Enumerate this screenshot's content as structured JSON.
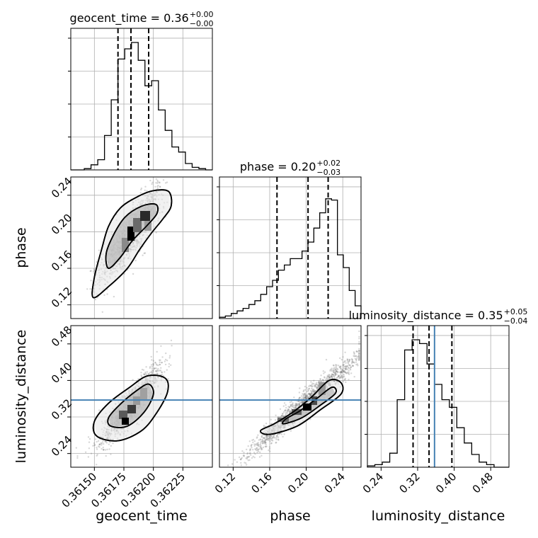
{
  "chart_data": {
    "type": "corner",
    "parameters": [
      "geocent_time",
      "phase",
      "luminosity_distance"
    ],
    "xlabels": [
      "geocent_time",
      "phase",
      "luminosity_distance"
    ],
    "ylabels": [
      "phase",
      "luminosity_distance"
    ],
    "ranges": {
      "geocent_time": [
        0.3613,
        0.3625
      ],
      "phase": [
        0.105,
        0.26
      ],
      "luminosity_distance": [
        0.21,
        0.52
      ]
    },
    "ticks": {
      "geocent_time": [
        "0.36150",
        "0.36175",
        "0.36200",
        "0.36225"
      ],
      "phase": [
        "0.12",
        "0.16",
        "0.20",
        "0.24"
      ],
      "luminosity_distance": [
        "0.24",
        "0.32",
        "0.40",
        "0.48"
      ]
    },
    "titles": {
      "geocent_time": {
        "prefix": "geocent_time = 0.36",
        "upper": "+0.00",
        "lower": "−0.00"
      },
      "phase": {
        "prefix": "phase = 0.20",
        "upper": "+0.02",
        "lower": "−0.03"
      },
      "luminosity_distance": {
        "prefix": "luminosity_distance = 0.35",
        "upper": "+0.05",
        "lower": "−0.04"
      }
    },
    "quantiles": {
      "geocent_time": [
        0.3617,
        0.36181,
        0.36196
      ],
      "phase": [
        0.168,
        0.202,
        0.224
      ],
      "luminosity_distance": [
        0.31,
        0.345,
        0.395
      ]
    },
    "truths": {
      "luminosity_distance": 0.357
    },
    "histograms": {
      "geocent_time": [
        0.0,
        0.0,
        0.01,
        0.04,
        0.08,
        0.27,
        0.55,
        0.87,
        0.95,
        1.0,
        0.86,
        0.66,
        0.7,
        0.47,
        0.31,
        0.18,
        0.14,
        0.05,
        0.02,
        0.01,
        0.0
      ],
      "phase": [
        0.01,
        0.02,
        0.04,
        0.06,
        0.08,
        0.11,
        0.14,
        0.19,
        0.25,
        0.3,
        0.38,
        0.42,
        0.47,
        0.47,
        0.53,
        0.6,
        0.71,
        0.83,
        0.94,
        0.93,
        0.5,
        0.4,
        0.22,
        0.1
      ],
      "luminosity_distance": [
        0.01,
        0.02,
        0.04,
        0.11,
        0.53,
        0.92,
        1.0,
        0.97,
        0.81,
        0.65,
        0.53,
        0.47,
        0.31,
        0.19,
        0.1,
        0.04,
        0.02,
        0.0,
        0.0
      ]
    },
    "grid": true,
    "truth_color": "#4682b4",
    "line_color": "#000000"
  }
}
